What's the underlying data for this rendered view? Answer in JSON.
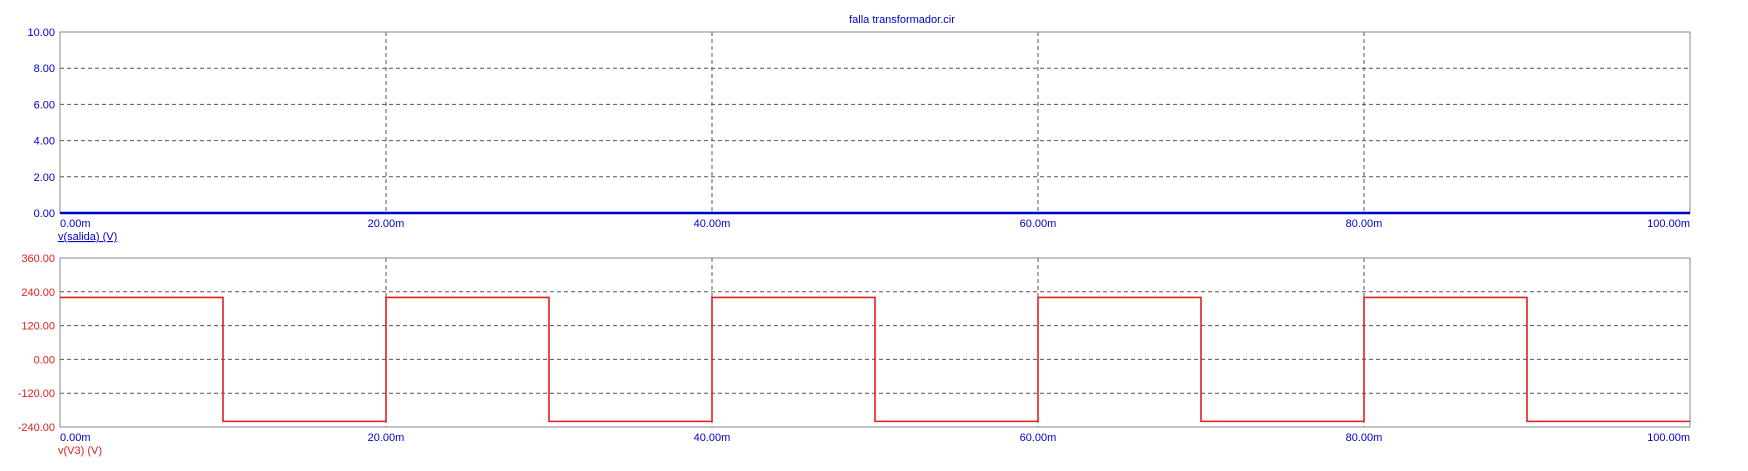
{
  "chart_data": [
    {
      "type": "line",
      "title": "falla transformador.cir",
      "ylabel": "v(salida) (V)",
      "xlim": [
        0,
        100
      ],
      "ylim": [
        0,
        10
      ],
      "x_ticks": [
        "0.00m",
        "20.00m",
        "40.00m",
        "60.00m",
        "80.00m",
        "100.00m"
      ],
      "y_ticks": [
        "10.00",
        "8.00",
        "6.00",
        "4.00",
        "2.00",
        "0.00"
      ],
      "grid": true,
      "color": "#0000cc",
      "series": [
        {
          "name": "v(salida) (V)",
          "x": [
            0,
            100
          ],
          "y": [
            0,
            0
          ]
        }
      ]
    },
    {
      "type": "line",
      "ylabel": "v(V3) (V)",
      "xlim": [
        0,
        100
      ],
      "ylim": [
        -240,
        360
      ],
      "x_ticks": [
        "0.00m",
        "20.00m",
        "40.00m",
        "60.00m",
        "80.00m",
        "100.00m"
      ],
      "y_ticks": [
        "360.00",
        "240.00",
        "120.00",
        "0.00",
        "-120.00",
        "-240.00"
      ],
      "grid": true,
      "color": "#e02020",
      "series": [
        {
          "name": "v(V3) (V)",
          "x": [
            0,
            10,
            10,
            20,
            20,
            30,
            30,
            40,
            40,
            50,
            50,
            60,
            60,
            70,
            70,
            80,
            80,
            90,
            90,
            100
          ],
          "y": [
            220,
            220,
            -220,
            -220,
            220,
            220,
            -220,
            -220,
            220,
            220,
            -220,
            -220,
            220,
            220,
            -220,
            -220,
            220,
            220,
            -220,
            -220
          ]
        }
      ]
    }
  ]
}
